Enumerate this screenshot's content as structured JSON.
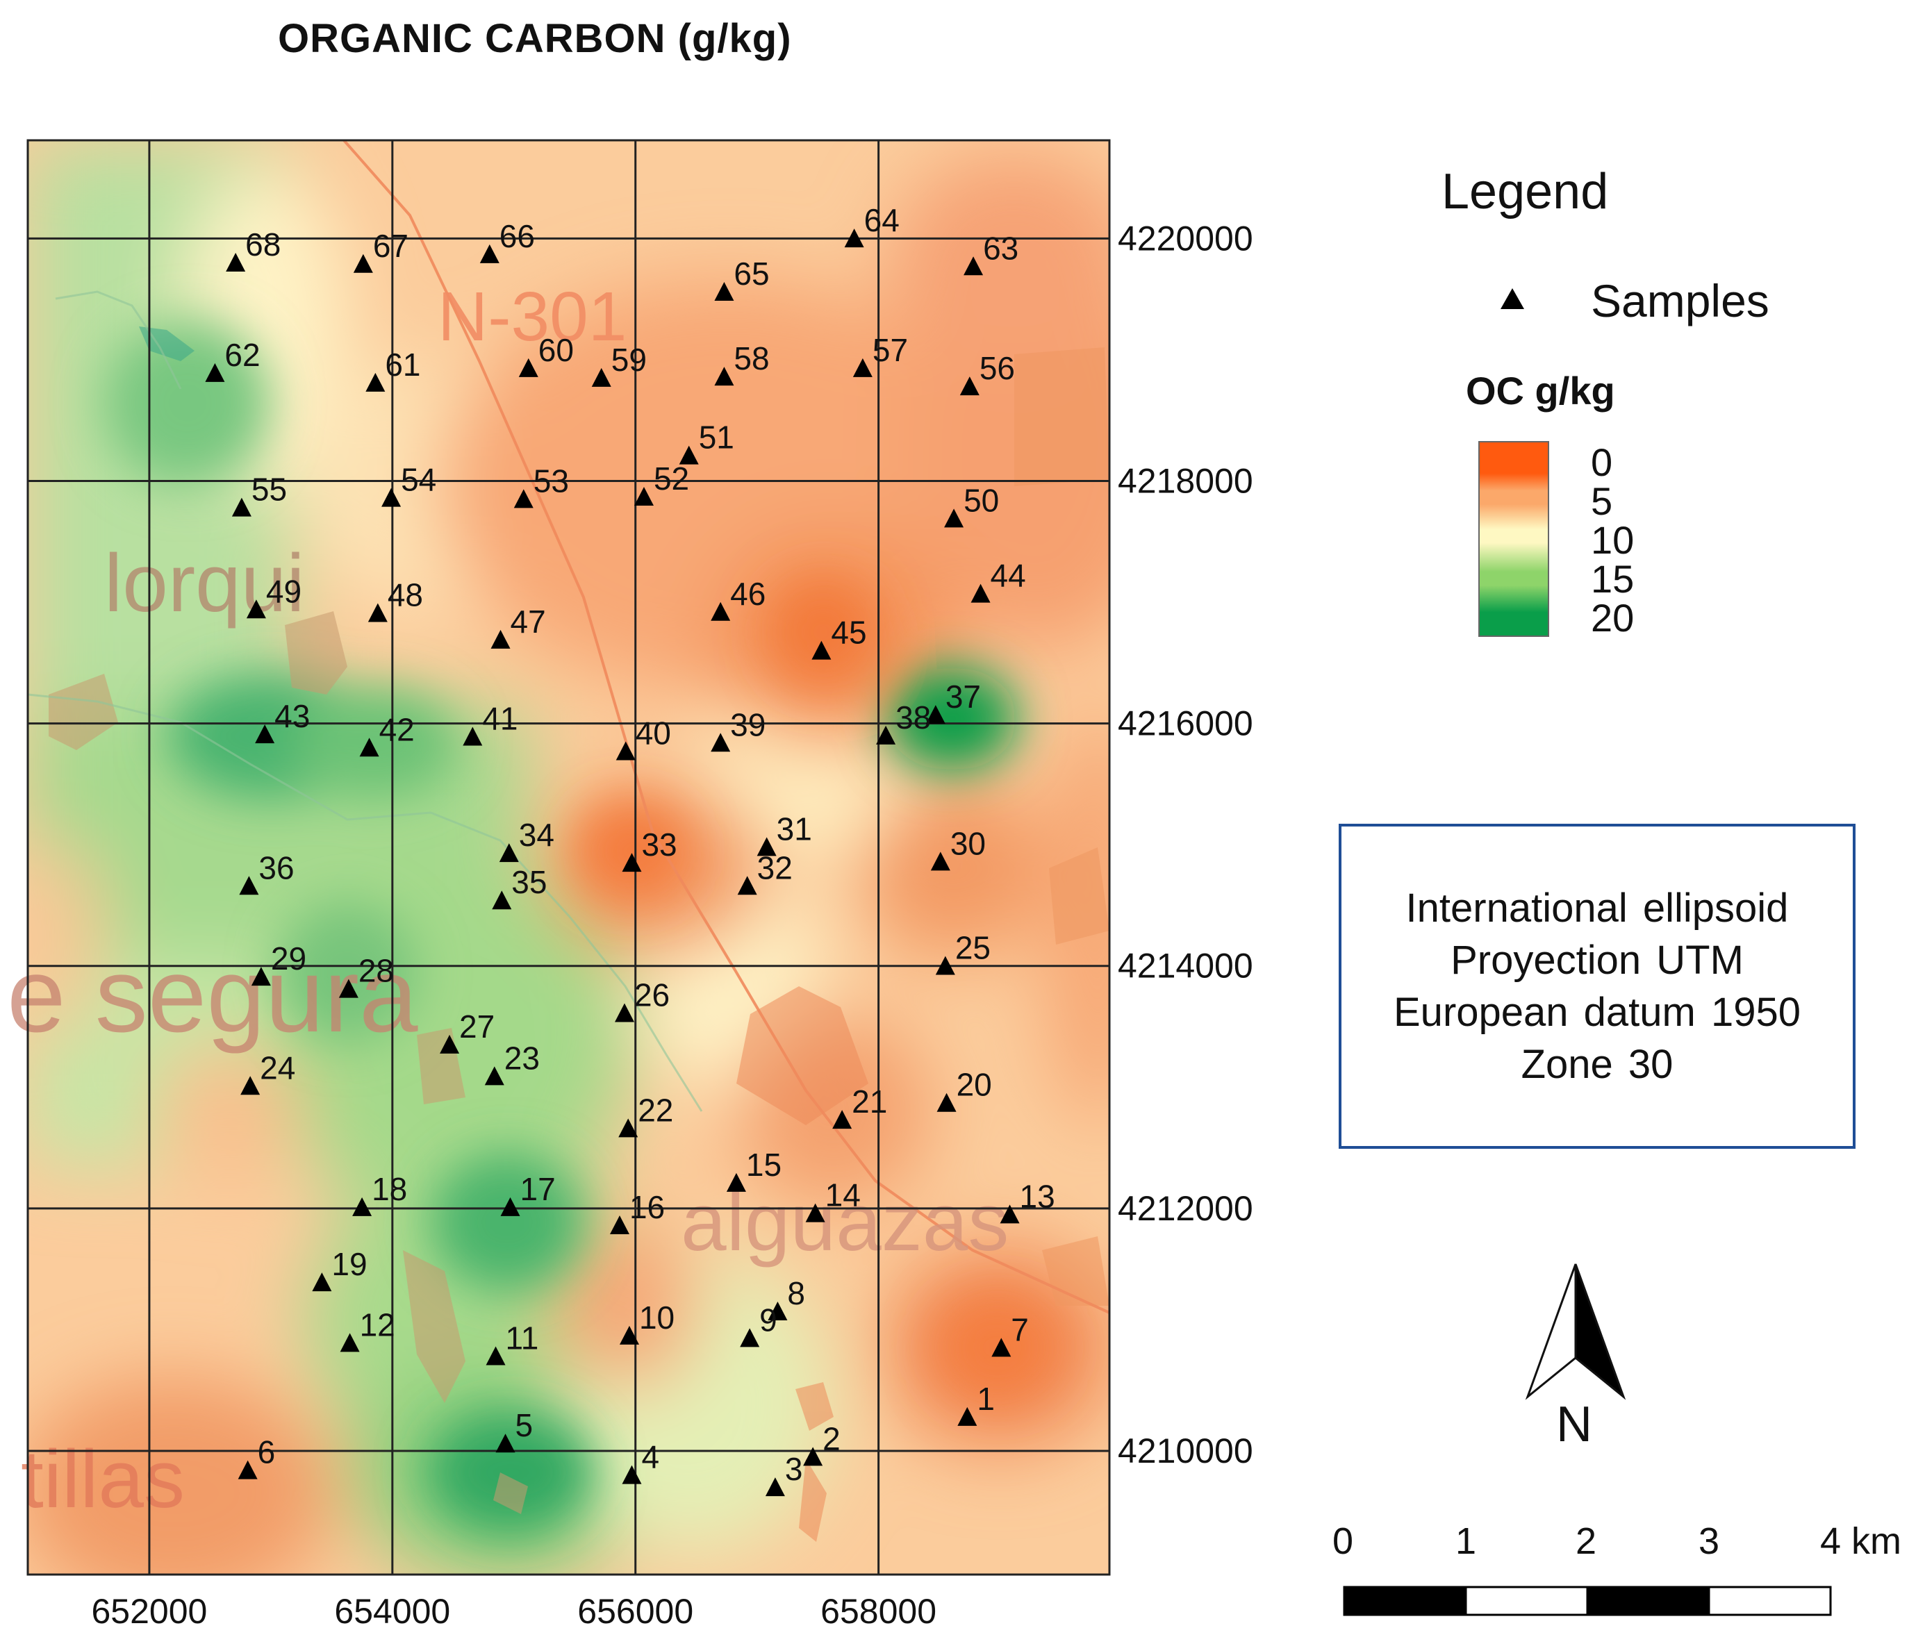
{
  "title": "ORGANIC CARBON (g/kg)",
  "legend": {
    "title": "Legend",
    "samples_label": "Samples",
    "oc_title": "OC g/kg",
    "ramp_labels": [
      "0",
      "5",
      "10",
      "15",
      "20"
    ],
    "ramp_colors": [
      "#ff5a0f",
      "#fba86a",
      "#fef8c2",
      "#8ed46a",
      "#0a9e4a"
    ]
  },
  "projection": {
    "line1": "International ellipsoid",
    "line2": "Proyection UTM",
    "line3": "European datum 1950",
    "line4": "Zone 30"
  },
  "north_label": "N",
  "scale_bar": {
    "labels": [
      "0",
      "1",
      "2",
      "3",
      "4 km"
    ]
  },
  "axes": {
    "x_ticks": [
      "652000",
      "654000",
      "656000",
      "658000"
    ],
    "y_ticks": [
      "4220000",
      "4218000",
      "4216000",
      "4214000",
      "4212000",
      "4210000"
    ],
    "x_range": [
      651000,
      659900
    ],
    "y_range": [
      4208980,
      4220810
    ]
  },
  "place_labels": {
    "road": "N-301",
    "lorqui": "lorqui",
    "segura": "e segura",
    "alguazas": "alguazas",
    "tillas": "tillas"
  },
  "samples": [
    {
      "id": "1",
      "x": 658730,
      "y": 4210270
    },
    {
      "id": "2",
      "x": 657460,
      "y": 4209940
    },
    {
      "id": "3",
      "x": 657150,
      "y": 4209690
    },
    {
      "id": "4",
      "x": 655970,
      "y": 4209790
    },
    {
      "id": "5",
      "x": 654930,
      "y": 4210050
    },
    {
      "id": "6",
      "x": 652810,
      "y": 4209830
    },
    {
      "id": "7",
      "x": 659010,
      "y": 4210840
    },
    {
      "id": "8",
      "x": 657170,
      "y": 4211140
    },
    {
      "id": "9",
      "x": 656940,
      "y": 4210920
    },
    {
      "id": "10",
      "x": 655950,
      "y": 4210940
    },
    {
      "id": "11",
      "x": 654850,
      "y": 4210770
    },
    {
      "id": "12",
      "x": 653650,
      "y": 4210880
    },
    {
      "id": "13",
      "x": 659080,
      "y": 4211940
    },
    {
      "id": "14",
      "x": 657480,
      "y": 4211950
    },
    {
      "id": "15",
      "x": 656830,
      "y": 4212200
    },
    {
      "id": "16",
      "x": 655870,
      "y": 4211850
    },
    {
      "id": "17",
      "x": 654970,
      "y": 4212000
    },
    {
      "id": "18",
      "x": 653750,
      "y": 4212000
    },
    {
      "id": "19",
      "x": 653420,
      "y": 4211380
    },
    {
      "id": "20",
      "x": 658560,
      "y": 4212860
    },
    {
      "id": "21",
      "x": 657700,
      "y": 4212720
    },
    {
      "id": "22",
      "x": 655940,
      "y": 4212650
    },
    {
      "id": "23",
      "x": 654840,
      "y": 4213080
    },
    {
      "id": "24",
      "x": 652830,
      "y": 4213000
    },
    {
      "id": "25",
      "x": 658550,
      "y": 4213990
    },
    {
      "id": "26",
      "x": 655910,
      "y": 4213600
    },
    {
      "id": "27",
      "x": 654470,
      "y": 4213340
    },
    {
      "id": "28",
      "x": 653640,
      "y": 4213800
    },
    {
      "id": "29",
      "x": 652920,
      "y": 4213900
    },
    {
      "id": "30",
      "x": 658510,
      "y": 4214850
    },
    {
      "id": "31",
      "x": 657080,
      "y": 4214970
    },
    {
      "id": "32",
      "x": 656920,
      "y": 4214650
    },
    {
      "id": "33",
      "x": 655970,
      "y": 4214840
    },
    {
      "id": "34",
      "x": 654960,
      "y": 4214920
    },
    {
      "id": "35",
      "x": 654900,
      "y": 4214530
    },
    {
      "id": "36",
      "x": 652820,
      "y": 4214650
    },
    {
      "id": "37",
      "x": 658470,
      "y": 4216060
    },
    {
      "id": "38",
      "x": 658060,
      "y": 4215890
    },
    {
      "id": "39",
      "x": 656700,
      "y": 4215830
    },
    {
      "id": "40",
      "x": 655920,
      "y": 4215760
    },
    {
      "id": "41",
      "x": 654660,
      "y": 4215880
    },
    {
      "id": "42",
      "x": 653810,
      "y": 4215790
    },
    {
      "id": "43",
      "x": 652950,
      "y": 4215900
    },
    {
      "id": "44",
      "x": 658840,
      "y": 4217060
    },
    {
      "id": "45",
      "x": 657530,
      "y": 4216590
    },
    {
      "id": "46",
      "x": 656700,
      "y": 4216910
    },
    {
      "id": "47",
      "x": 654890,
      "y": 4216680
    },
    {
      "id": "48",
      "x": 653880,
      "y": 4216900
    },
    {
      "id": "49",
      "x": 652880,
      "y": 4216930
    },
    {
      "id": "50",
      "x": 658620,
      "y": 4217680
    },
    {
      "id": "51",
      "x": 656440,
      "y": 4218200
    },
    {
      "id": "52",
      "x": 656070,
      "y": 4217860
    },
    {
      "id": "53",
      "x": 655080,
      "y": 4217840
    },
    {
      "id": "54",
      "x": 653990,
      "y": 4217850
    },
    {
      "id": "55",
      "x": 652760,
      "y": 4217770
    },
    {
      "id": "56",
      "x": 658750,
      "y": 4218770
    },
    {
      "id": "57",
      "x": 657870,
      "y": 4218920
    },
    {
      "id": "58",
      "x": 656730,
      "y": 4218850
    },
    {
      "id": "59",
      "x": 655720,
      "y": 4218840
    },
    {
      "id": "60",
      "x": 655120,
      "y": 4218920
    },
    {
      "id": "61",
      "x": 653860,
      "y": 4218800
    },
    {
      "id": "62",
      "x": 652540,
      "y": 4218880
    },
    {
      "id": "63",
      "x": 658780,
      "y": 4219760
    },
    {
      "id": "64",
      "x": 657800,
      "y": 4219990
    },
    {
      "id": "65",
      "x": 656730,
      "y": 4219550
    },
    {
      "id": "66",
      "x": 654800,
      "y": 4219860
    },
    {
      "id": "67",
      "x": 653760,
      "y": 4219780
    },
    {
      "id": "68",
      "x": 652710,
      "y": 4219790
    }
  ]
}
